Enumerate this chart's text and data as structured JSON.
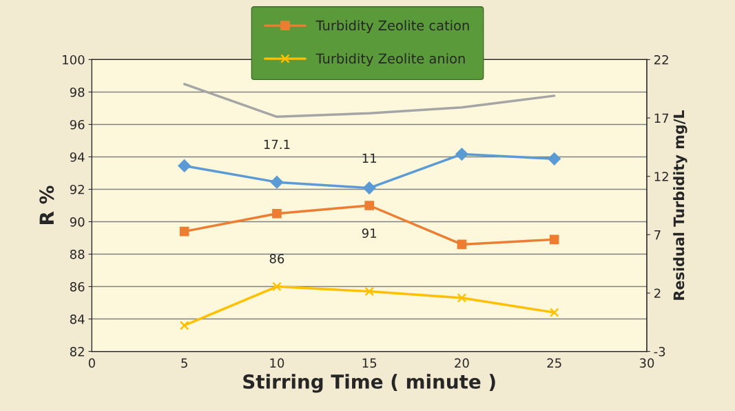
{
  "chart_data": {
    "type": "line",
    "xlabel": "Stirring Time ( minute )",
    "ylabel": "R %",
    "y2label": "Residual Turbidity mg/L",
    "x": [
      5,
      10,
      15,
      20,
      25
    ],
    "series": [
      {
        "color": "#a5a5a5",
        "axis": "y2",
        "marker": "none",
        "values": [
          19.9,
          17.1,
          17.4,
          17.9,
          18.9
        ],
        "value_labels": [
          null,
          "17.1",
          null,
          null,
          null
        ]
      },
      {
        "color": "#5b9bd5",
        "axis": "y2",
        "marker": "diamond",
        "values": [
          12.9,
          11.5,
          11,
          13.9,
          13.5
        ],
        "value_labels": [
          null,
          null,
          "11",
          null,
          null
        ]
      },
      {
        "name": "Turbidity Zeolite cation",
        "color": "#ed7d31",
        "marker": "square",
        "values": [
          89.4,
          90.5,
          91,
          88.6,
          88.9
        ],
        "value_labels": [
          null,
          null,
          "91",
          null,
          null
        ]
      },
      {
        "name": "Turbidity Zeolite anion",
        "color": "#ffc000",
        "marker": "cross",
        "values": [
          83.6,
          86,
          85.7,
          85.3,
          84.4
        ],
        "value_labels": [
          null,
          "86",
          null,
          null,
          null
        ]
      }
    ],
    "xlim": [
      0,
      30
    ],
    "xticks": [
      0,
      5,
      10,
      15,
      20,
      25,
      30
    ],
    "ylim": [
      82,
      100
    ],
    "yticks": [
      82,
      84,
      86,
      88,
      90,
      92,
      94,
      96,
      98,
      100
    ],
    "y2lim": [
      -3,
      22
    ],
    "y2ticks": [
      -3,
      2,
      7,
      12,
      17,
      22
    ],
    "grid": "y",
    "legend": "top",
    "line_style": "solid"
  }
}
